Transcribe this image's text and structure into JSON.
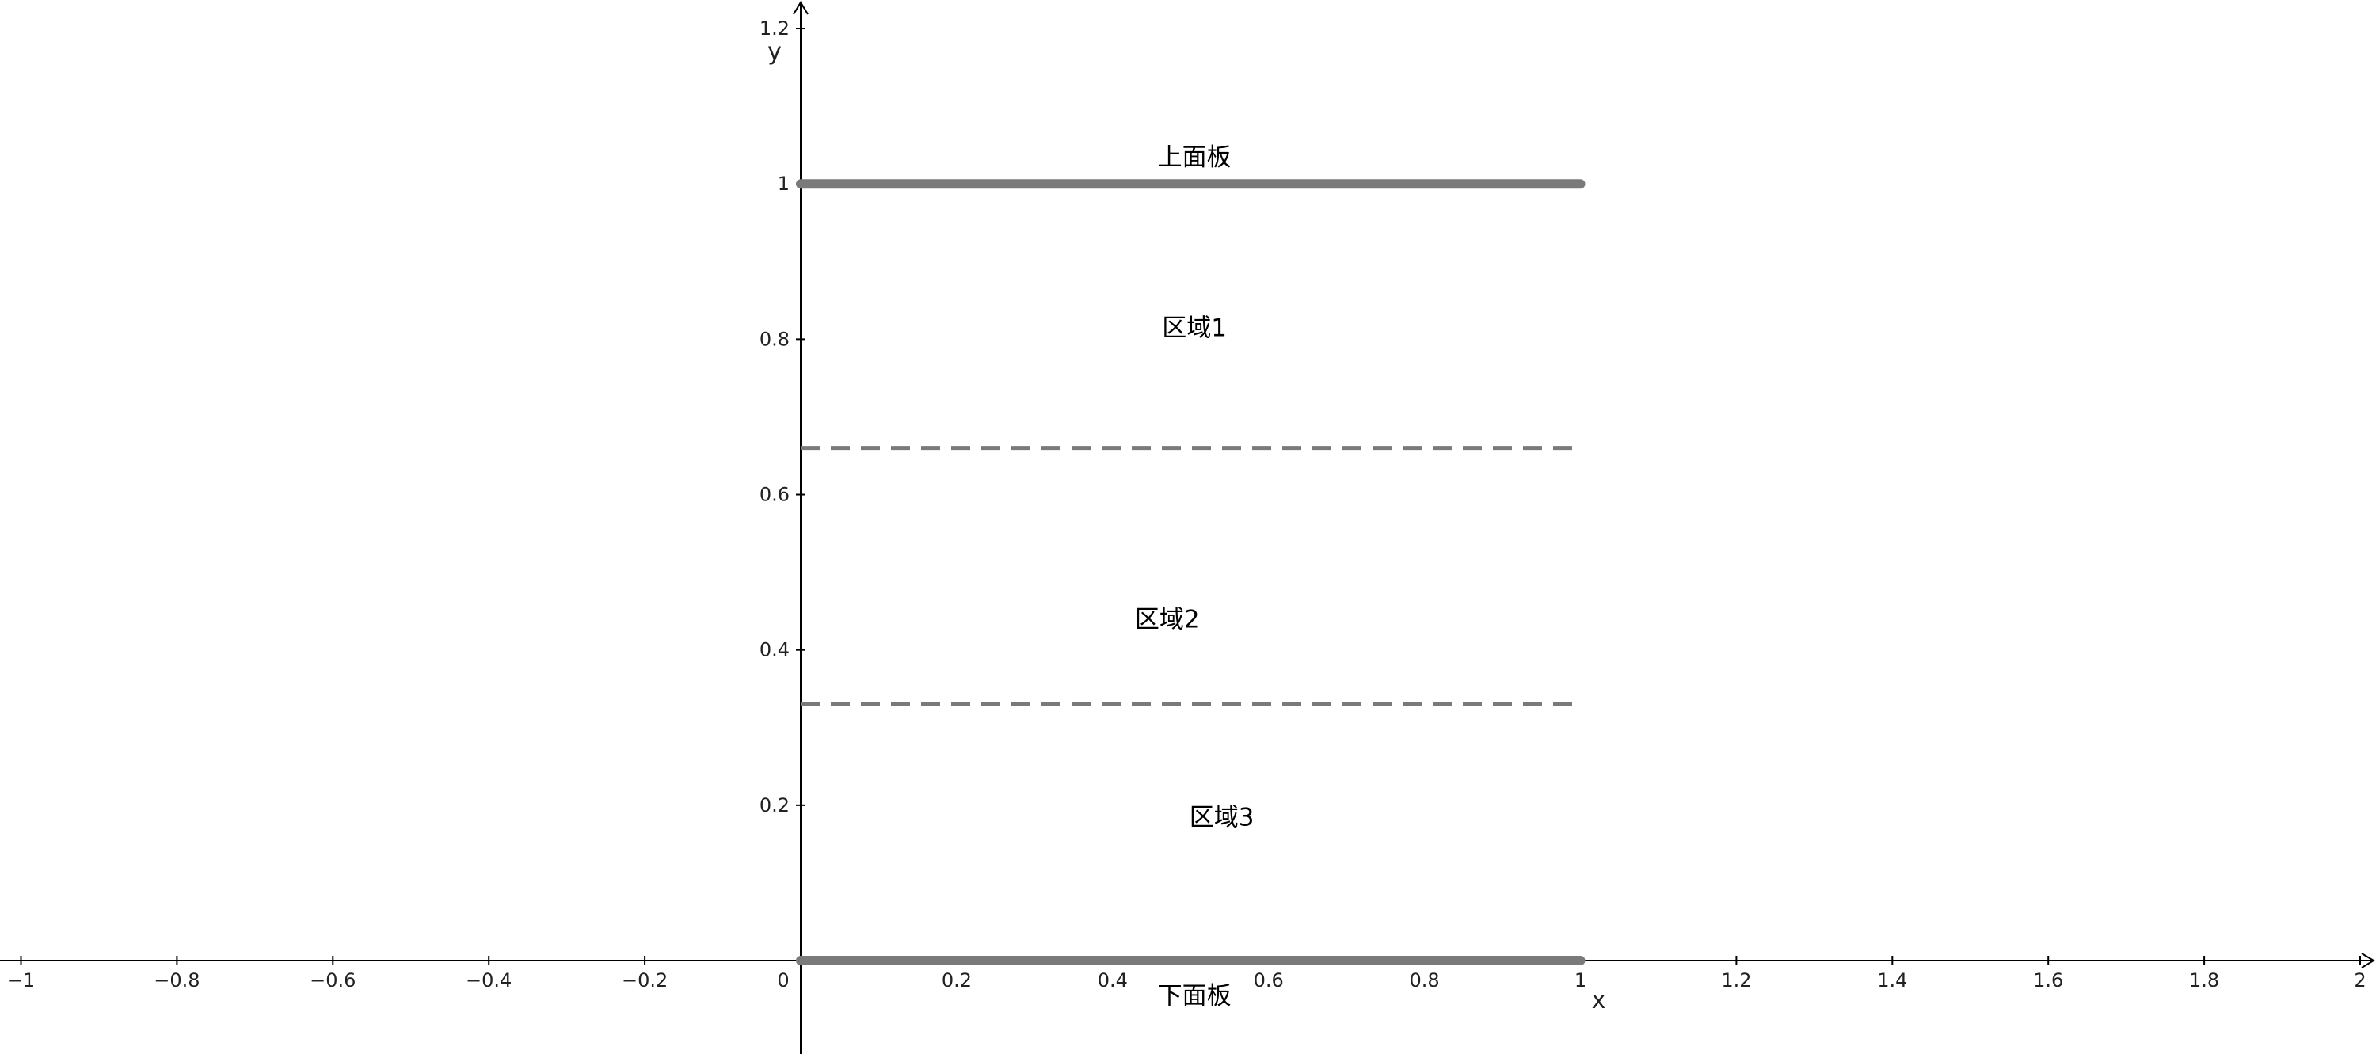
{
  "chart_data": {
    "type": "line",
    "xlabel": "x",
    "ylabel": "y",
    "xlim": [
      -1.02,
      2.03
    ],
    "ylim": [
      -0.12,
      1.24
    ],
    "x_ticks": [
      -1,
      -0.8,
      -0.6,
      -0.4,
      -0.2,
      0,
      0.2,
      0.4,
      0.6,
      0.8,
      1,
      1.2,
      1.4,
      1.6,
      1.8,
      2
    ],
    "x_tick_labels": [
      "−1",
      "−0.8",
      "−0.6",
      "−0.4",
      "−0.2",
      "0",
      "0.2",
      "0.4",
      "0.6",
      "0.8",
      "1",
      "1.2",
      "1.4",
      "1.6",
      "1.8",
      "2"
    ],
    "y_ticks": [
      0.2,
      0.4,
      0.6,
      0.8,
      1,
      1.2
    ],
    "y_tick_labels": [
      "0.2",
      "0.4",
      "0.6",
      "0.8",
      "1",
      "1.2"
    ],
    "grid": false,
    "plates": [
      {
        "y": 1,
        "x": [
          0,
          1
        ],
        "style": "solid-thick"
      },
      {
        "y": 0,
        "x": [
          0,
          1
        ],
        "style": "solid-thick"
      }
    ],
    "dividers": [
      {
        "y": 0.66,
        "x": [
          0,
          1
        ],
        "style": "dashed"
      },
      {
        "y": 0.33,
        "x": [
          0,
          1
        ],
        "style": "dashed"
      }
    ],
    "annotations": [
      {
        "text": "上面板",
        "x": 0.505,
        "y": 1.035
      },
      {
        "text": "区域1",
        "x": 0.505,
        "y": 0.815
      },
      {
        "text": "区域2",
        "x": 0.47,
        "y": 0.44
      },
      {
        "text": "区域3",
        "x": 0.54,
        "y": 0.185
      },
      {
        "text": "下面板",
        "x": 0.505,
        "y": -0.045
      }
    ],
    "colors": {
      "plate": "#7a7a7a",
      "divider": "#7a7a7a",
      "axis": "#000000"
    }
  }
}
